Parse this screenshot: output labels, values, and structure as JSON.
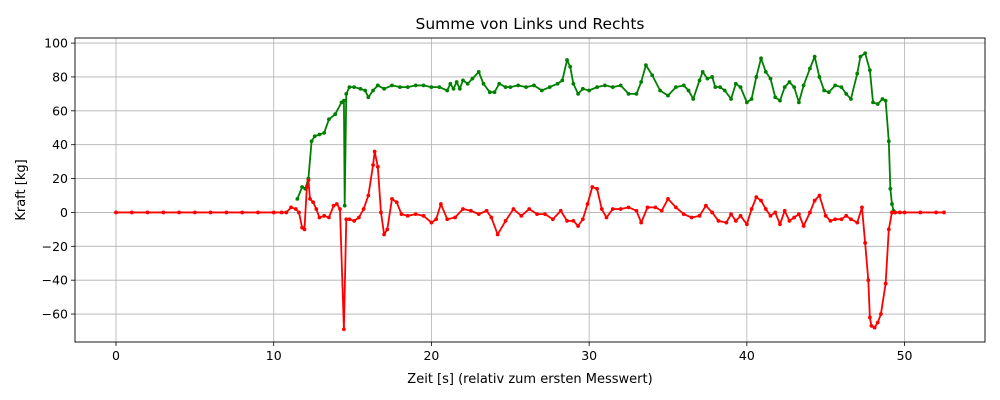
{
  "chart_data": {
    "type": "line",
    "title": "Summe von Links und Rechts",
    "xlabel": "Zeit [s] (relativ zum ersten Messwert)",
    "ylabel": "Kraft [kg]",
    "xlim": [
      -2.6,
      55.1
    ],
    "ylim": [
      -76.5,
      103
    ],
    "xticks": [
      0,
      10,
      20,
      30,
      40,
      50
    ],
    "xtick_labels": [
      "0",
      "10",
      "20",
      "30",
      "40",
      "50"
    ],
    "yticks": [
      -60,
      -40,
      -20,
      0,
      20,
      40,
      60,
      80,
      100
    ],
    "ytick_labels": [
      "−60",
      "−40",
      "−20",
      "0",
      "20",
      "40",
      "60",
      "80",
      "100"
    ],
    "grid": true,
    "legend": "none",
    "series": [
      {
        "color": "#008000",
        "marker": "dot",
        "x": [
          11.5,
          11.8,
          12.0,
          12.2,
          12.4,
          12.6,
          12.9,
          13.2,
          13.5,
          13.9,
          14.3,
          14.45,
          14.5,
          14.6,
          14.8,
          15.1,
          15.5,
          15.8,
          16.0,
          16.3,
          16.6,
          17.0,
          17.5,
          18.0,
          18.5,
          19.0,
          19.5,
          20.0,
          20.5,
          21.0,
          21.2,
          21.4,
          21.6,
          21.8,
          22.0,
          22.3,
          22.6,
          23.0,
          23.3,
          23.7,
          24.0,
          24.3,
          24.7,
          25.0,
          25.5,
          26.0,
          26.5,
          27.0,
          27.5,
          28.0,
          28.3,
          28.6,
          28.8,
          29.0,
          29.3,
          29.6,
          30.0,
          30.5,
          31.0,
          31.5,
          32.0,
          32.5,
          33.0,
          33.3,
          33.6,
          34.0,
          34.5,
          35.0,
          35.5,
          36.0,
          36.3,
          36.6,
          37.0,
          37.2,
          37.5,
          37.8,
          38.0,
          38.3,
          38.6,
          39.0,
          39.3,
          39.6,
          40.0,
          40.3,
          40.6,
          40.9,
          41.2,
          41.5,
          41.8,
          42.1,
          42.4,
          42.7,
          43.0,
          43.3,
          43.6,
          44.0,
          44.3,
          44.6,
          44.9,
          45.2,
          45.6,
          46.0,
          46.3,
          46.6,
          47.0,
          47.2,
          47.5,
          47.8,
          48.0,
          48.3,
          48.6,
          48.8,
          49.0,
          49.1,
          49.2,
          49.3,
          49.4
        ],
        "y": [
          8,
          15,
          14,
          20,
          42,
          45,
          46,
          47,
          55,
          58,
          65,
          66,
          4,
          70,
          74,
          74,
          73,
          72,
          68,
          72,
          75,
          73,
          75,
          74,
          74,
          75,
          75,
          74,
          74,
          72,
          76,
          73,
          77,
          73,
          78,
          76,
          79,
          83,
          76,
          71,
          71,
          76,
          74,
          74,
          75,
          74,
          75,
          72,
          74,
          76,
          78,
          90,
          86,
          76,
          70,
          73,
          72,
          74,
          75,
          74,
          75,
          70,
          70,
          77,
          87,
          81,
          72,
          69,
          74,
          75,
          72,
          67,
          78,
          83,
          79,
          80,
          74,
          74,
          72,
          67,
          76,
          74,
          65,
          67,
          80,
          91,
          83,
          79,
          68,
          66,
          74,
          77,
          74,
          65,
          75,
          85,
          92,
          80,
          72,
          71,
          75,
          74,
          70,
          67,
          82,
          92,
          94,
          84,
          65,
          64,
          67,
          66,
          42,
          14,
          5,
          1,
          0
        ]
      },
      {
        "color": "#ff0000",
        "marker": "dot",
        "x": [
          0,
          1,
          2,
          3,
          4,
          5,
          6,
          7,
          8,
          9,
          10,
          10.5,
          10.8,
          11.1,
          11.4,
          11.6,
          11.8,
          11.95,
          12.1,
          12.2,
          12.3,
          12.5,
          12.7,
          12.9,
          13.2,
          13.5,
          13.8,
          14.0,
          14.2,
          14.45,
          14.6,
          14.8,
          15.1,
          15.4,
          15.7,
          16.0,
          16.3,
          16.4,
          16.6,
          16.8,
          17.0,
          17.2,
          17.5,
          17.8,
          18.1,
          18.5,
          19.0,
          19.5,
          20.0,
          20.3,
          20.6,
          21.0,
          21.5,
          22.0,
          22.5,
          23.0,
          23.5,
          23.8,
          24.2,
          24.7,
          25.2,
          25.7,
          26.2,
          26.7,
          27.2,
          27.7,
          28.2,
          28.6,
          29.0,
          29.3,
          29.6,
          29.9,
          30.2,
          30.5,
          30.8,
          31.1,
          31.5,
          32.0,
          32.5,
          33.0,
          33.3,
          33.7,
          34.2,
          34.6,
          35.0,
          35.5,
          36.0,
          36.5,
          37.0,
          37.4,
          37.8,
          38.2,
          38.7,
          39.0,
          39.3,
          39.6,
          40.0,
          40.3,
          40.6,
          40.9,
          41.2,
          41.5,
          41.8,
          42.1,
          42.4,
          42.7,
          43.0,
          43.3,
          43.6,
          44.0,
          44.3,
          44.6,
          45.0,
          45.3,
          45.6,
          46.0,
          46.3,
          46.6,
          47.0,
          47.3,
          47.5,
          47.7,
          47.8,
          47.9,
          48.1,
          48.3,
          48.5,
          48.8,
          49.0,
          49.2,
          49.4,
          49.7,
          50,
          51,
          52,
          52.5
        ],
        "y": [
          0,
          0,
          0,
          0,
          0,
          0,
          0,
          0,
          0,
          0,
          0,
          0,
          0,
          3,
          2,
          0,
          -9,
          -10,
          15,
          19,
          8,
          6,
          2,
          -3,
          -2,
          -3,
          4,
          5,
          2,
          -69,
          -4,
          -4,
          -5,
          -3,
          2,
          10,
          28,
          36,
          27,
          0,
          -13,
          -10,
          8,
          6,
          -1,
          -2,
          -1,
          -2,
          -6,
          -4,
          5,
          -4,
          -3,
          2,
          1,
          -1,
          1,
          -3,
          -13,
          -5,
          2,
          -2,
          2,
          -1,
          -1,
          -4,
          1,
          -5,
          -5,
          -8,
          -4,
          5,
          15,
          14,
          2,
          -3,
          2,
          2,
          3,
          1,
          -6,
          3,
          3,
          1,
          8,
          3,
          -1,
          -3,
          -2,
          4,
          0,
          -5,
          -6,
          -1,
          -5,
          -2,
          -7,
          2,
          9,
          7,
          2,
          -2,
          0,
          -7,
          1,
          -5,
          -3,
          -1,
          -8,
          0,
          7,
          10,
          -2,
          -5,
          -4,
          -4,
          -2,
          -4,
          -6,
          3,
          -18,
          -40,
          -62,
          -67,
          -68,
          -65,
          -60,
          -42,
          -10,
          0,
          0,
          0,
          0,
          0,
          0,
          0
        ]
      }
    ]
  }
}
